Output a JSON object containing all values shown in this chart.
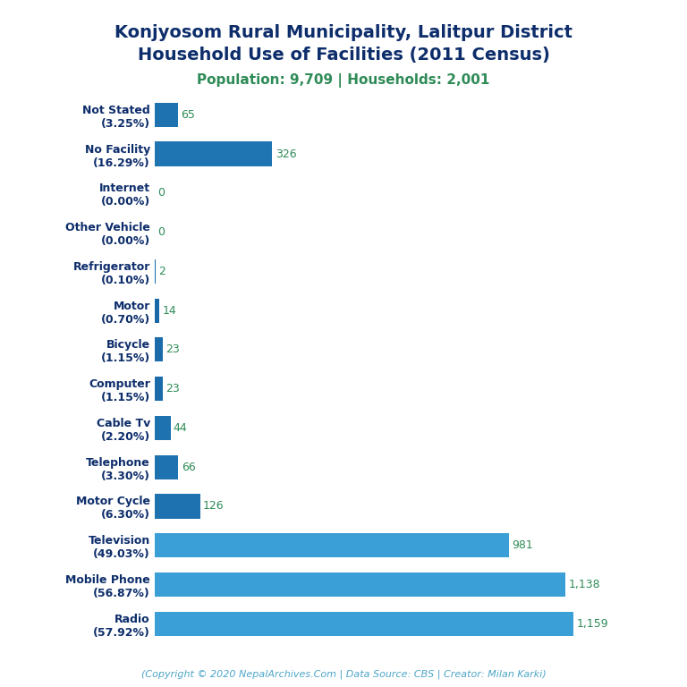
{
  "title_line1": "Konjyosom Rural Municipality, Lalitpur District",
  "title_line2": "Household Use of Facilities (2011 Census)",
  "subtitle": "Population: 9,709 | Households: 2,001",
  "copyright": "(Copyright © 2020 NepalArchives.Com | Data Source: CBS | Creator: Milan Karki)",
  "categories": [
    "Radio\n(57.92%)",
    "Mobile Phone\n(56.87%)",
    "Television\n(49.03%)",
    "Motor Cycle\n(6.30%)",
    "Telephone\n(3.30%)",
    "Cable Tv\n(2.20%)",
    "Computer\n(1.15%)",
    "Bicycle\n(1.15%)",
    "Motor\n(0.70%)",
    "Refrigerator\n(0.10%)",
    "Other Vehicle\n(0.00%)",
    "Internet\n(0.00%)",
    "No Facility\n(16.29%)",
    "Not Stated\n(3.25%)"
  ],
  "values": [
    1159,
    1138,
    981,
    126,
    66,
    44,
    23,
    23,
    14,
    2,
    0,
    0,
    326,
    65
  ],
  "value_labels": [
    "1,159",
    "1,138",
    "981",
    "126",
    "66",
    "44",
    "23",
    "23",
    "14",
    "2",
    "0",
    "0",
    "326",
    "65"
  ],
  "bar_colors": [
    "#3a9fd6",
    "#3a9fd6",
    "#3a9fd6",
    "#1e72b0",
    "#1e72b0",
    "#1e72b0",
    "#1b6aaa",
    "#1b6aaa",
    "#1868a8",
    "#1868a8",
    "#1868a8",
    "#1868a8",
    "#1f74b2",
    "#1e72b0"
  ],
  "title_color": "#0d2d6b",
  "subtitle_color": "#2e8b57",
  "label_color": "#2e8b57",
  "copyright_color": "#4da6c8",
  "bg_color": "#ffffff",
  "title_fontsize": 14,
  "subtitle_fontsize": 11,
  "label_fontsize": 9,
  "category_fontsize": 9,
  "copyright_fontsize": 8,
  "xlim": [
    0,
    1350
  ]
}
